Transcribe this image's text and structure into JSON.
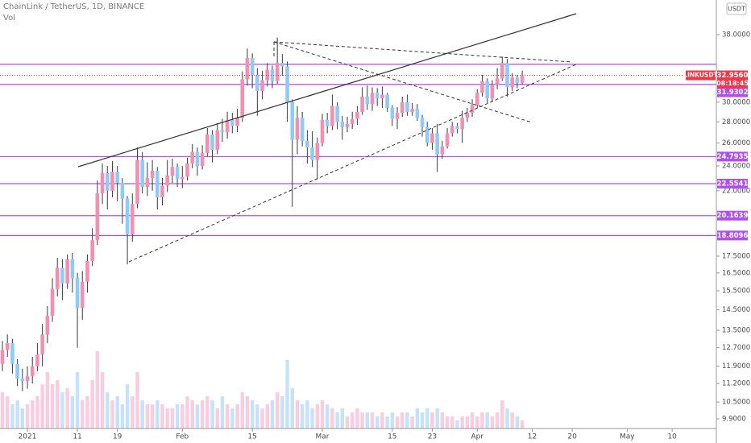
{
  "chart_data": {
    "type": "candlestick",
    "title": "ChainLink / TetherUS, 1D, BINANCE",
    "volume_label": "Vol",
    "currency": "USDT",
    "x": [
      "2020-12-27",
      "2020-12-28",
      "2020-12-29",
      "2020-12-30",
      "2020-12-31",
      "2021-01-01",
      "2021-01-02",
      "2021-01-03",
      "2021-01-04",
      "2021-01-05",
      "2021-01-06",
      "2021-01-07",
      "2021-01-08",
      "2021-01-09",
      "2021-01-10",
      "2021-01-11",
      "2021-01-12",
      "2021-01-13",
      "2021-01-14",
      "2021-01-15",
      "2021-01-16",
      "2021-01-17",
      "2021-01-18",
      "2021-01-19",
      "2021-01-20",
      "2021-01-21",
      "2021-01-22",
      "2021-01-23",
      "2021-01-24",
      "2021-01-25",
      "2021-01-26",
      "2021-01-27",
      "2021-01-28",
      "2021-01-29",
      "2021-01-30",
      "2021-01-31",
      "2021-02-01",
      "2021-02-02",
      "2021-02-03",
      "2021-02-04",
      "2021-02-05",
      "2021-02-06",
      "2021-02-07",
      "2021-02-08",
      "2021-02-09",
      "2021-02-10",
      "2021-02-11",
      "2021-02-12",
      "2021-02-13",
      "2021-02-14",
      "2021-02-15",
      "2021-02-16",
      "2021-02-17",
      "2021-02-18",
      "2021-02-19",
      "2021-02-20",
      "2021-02-21",
      "2021-02-22",
      "2021-02-23",
      "2021-02-24",
      "2021-02-25",
      "2021-02-26",
      "2021-02-27",
      "2021-02-28",
      "2021-03-01",
      "2021-03-02",
      "2021-03-03",
      "2021-03-04",
      "2021-03-05",
      "2021-03-06",
      "2021-03-07",
      "2021-03-08",
      "2021-03-09",
      "2021-03-10",
      "2021-03-11",
      "2021-03-12",
      "2021-03-13",
      "2021-03-14",
      "2021-03-15",
      "2021-03-16",
      "2021-03-17",
      "2021-03-18",
      "2021-03-19",
      "2021-03-20",
      "2021-03-21",
      "2021-03-22",
      "2021-03-23",
      "2021-03-24",
      "2021-03-25",
      "2021-03-26",
      "2021-03-27",
      "2021-03-28",
      "2021-03-29",
      "2021-03-30",
      "2021-03-31",
      "2021-04-01",
      "2021-04-02",
      "2021-04-03",
      "2021-04-04",
      "2021-04-05",
      "2021-04-06",
      "2021-04-07",
      "2021-04-08",
      "2021-04-09",
      "2021-04-10"
    ],
    "open": [
      12.0,
      12.6,
      12.9,
      12.0,
      11.4,
      11.3,
      11.5,
      11.9,
      12.4,
      13.3,
      14.2,
      15.6,
      16.8,
      15.9,
      17.3,
      16.2,
      14.6,
      16.0,
      17.2,
      18.5,
      21.8,
      23.4,
      22.0,
      23.5,
      22.6,
      21.4,
      18.9,
      21.0,
      24.5,
      22.3,
      23.0,
      23.6,
      21.5,
      22.4,
      23.2,
      23.9,
      22.9,
      23.1,
      24.2,
      25.2,
      24.0,
      25.1,
      26.8,
      25.4,
      27.2,
      27.0,
      28.2,
      27.6,
      28.4,
      32.5,
      35.0,
      33.0,
      31.2,
      32.4,
      33.6,
      32.3,
      34.4,
      34.0,
      30.0,
      26.3,
      28.4,
      26.2,
      25.6,
      24.5,
      26.0,
      28.2,
      27.6,
      29.6,
      28.0,
      27.5,
      27.8,
      28.3,
      29.0,
      30.6,
      29.8,
      31.0,
      30.4,
      30.8,
      29.4,
      28.3,
      28.9,
      30.0,
      29.0,
      29.3,
      28.4,
      27.5,
      26.0,
      26.9,
      25.0,
      25.7,
      26.9,
      27.6,
      27.3,
      28.4,
      28.9,
      29.7,
      31.0,
      32.3,
      30.4,
      31.9,
      32.6,
      34.4,
      31.6,
      32.7,
      32.1
    ],
    "high": [
      13.0,
      13.3,
      13.1,
      12.2,
      11.8,
      11.9,
      12.3,
      12.9,
      13.8,
      14.7,
      16.2,
      17.4,
      17.3,
      17.6,
      17.7,
      16.5,
      16.6,
      17.6,
      19.3,
      22.8,
      24.2,
      24.0,
      24.4,
      24.0,
      23.0,
      21.6,
      21.8,
      25.6,
      25.2,
      24.3,
      24.5,
      23.9,
      23.0,
      24.5,
      24.6,
      24.2,
      24.0,
      24.7,
      25.9,
      25.6,
      25.8,
      27.4,
      27.2,
      27.9,
      28.3,
      29.0,
      28.9,
      29.3,
      33.4,
      36.2,
      35.6,
      33.8,
      33.5,
      34.4,
      34.1,
      37.6,
      35.5,
      34.6,
      30.3,
      29.6,
      29.0,
      27.2,
      27.1,
      26.5,
      28.8,
      28.9,
      30.8,
      30.0,
      28.6,
      28.5,
      29.0,
      29.6,
      31.6,
      31.8,
      31.6,
      31.5,
      31.7,
      31.0,
      29.7,
      29.5,
      30.6,
      30.8,
      29.9,
      29.8,
      28.7,
      28.0,
      27.4,
      27.8,
      26.2,
      27.4,
      28.0,
      27.9,
      29.1,
      29.4,
      30.3,
      31.4,
      33.0,
      32.6,
      32.4,
      33.8,
      35.2,
      34.9,
      33.2,
      33.0,
      33.5
    ],
    "low": [
      11.7,
      12.3,
      11.6,
      11.1,
      10.9,
      11.0,
      11.2,
      11.7,
      11.9,
      12.9,
      13.9,
      15.2,
      15.0,
      15.6,
      15.4,
      12.7,
      14.0,
      15.4,
      16.9,
      18.2,
      21.0,
      20.6,
      21.5,
      21.2,
      19.6,
      17.0,
      18.4,
      20.7,
      21.8,
      21.6,
      22.0,
      20.6,
      20.9,
      21.9,
      22.6,
      22.3,
      22.2,
      22.8,
      23.8,
      23.2,
      23.7,
      24.8,
      24.3,
      25.0,
      26.1,
      26.4,
      26.9,
      27.0,
      28.0,
      31.8,
      31.5,
      28.6,
      30.3,
      31.7,
      31.5,
      32.0,
      32.9,
      28.0,
      20.8,
      25.0,
      25.7,
      24.2,
      23.9,
      22.9,
      25.7,
      26.9,
      27.2,
      27.3,
      26.3,
      27.0,
      27.3,
      27.7,
      28.7,
      29.2,
      29.1,
      29.6,
      29.4,
      29.0,
      27.6,
      27.3,
      28.5,
      28.6,
      28.6,
      28.1,
      26.6,
      25.7,
      25.4,
      23.5,
      24.6,
      25.5,
      26.6,
      26.9,
      26.0,
      28.0,
      28.5,
      29.4,
      30.6,
      29.9,
      30.1,
      31.4,
      32.3,
      30.6,
      31.2,
      31.5,
      31.9
    ],
    "close": [
      12.6,
      12.9,
      12.0,
      11.4,
      11.3,
      11.5,
      11.9,
      12.4,
      13.3,
      14.2,
      15.6,
      16.8,
      15.9,
      17.3,
      16.2,
      14.6,
      16.0,
      17.2,
      18.5,
      21.8,
      23.4,
      22.0,
      23.5,
      22.6,
      21.4,
      18.9,
      21.0,
      24.5,
      22.3,
      23.0,
      23.6,
      21.5,
      22.4,
      23.2,
      23.9,
      22.9,
      23.1,
      24.2,
      25.2,
      24.0,
      25.1,
      26.8,
      25.4,
      27.2,
      27.0,
      28.2,
      27.6,
      28.4,
      32.5,
      35.0,
      33.0,
      31.2,
      32.4,
      33.6,
      32.3,
      34.4,
      34.0,
      30.0,
      26.3,
      28.4,
      26.2,
      25.6,
      24.5,
      26.0,
      28.2,
      27.6,
      29.6,
      28.0,
      27.5,
      27.8,
      28.3,
      29.0,
      30.6,
      29.8,
      31.0,
      30.4,
      30.8,
      29.4,
      28.3,
      28.9,
      30.0,
      29.0,
      29.3,
      28.4,
      27.5,
      26.0,
      26.9,
      25.0,
      25.7,
      26.9,
      27.6,
      27.3,
      28.4,
      28.9,
      29.7,
      31.0,
      32.3,
      30.4,
      31.9,
      32.6,
      34.4,
      31.6,
      32.7,
      32.1,
      32.956
    ],
    "volume": [
      45,
      40,
      30,
      35,
      25,
      30,
      35,
      40,
      55,
      70,
      55,
      60,
      45,
      50,
      40,
      70,
      35,
      40,
      60,
      96,
      70,
      45,
      35,
      40,
      30,
      55,
      40,
      70,
      35,
      30,
      30,
      35,
      30,
      25,
      25,
      30,
      30,
      40,
      35,
      30,
      35,
      40,
      35,
      25,
      40,
      30,
      25,
      30,
      45,
      40,
      35,
      30,
      25,
      30,
      35,
      45,
      40,
      85,
      50,
      35,
      30,
      35,
      25,
      30,
      35,
      30,
      25,
      20,
      25,
      15,
      20,
      25,
      20,
      20,
      20,
      15,
      20,
      15,
      20,
      15,
      20,
      20,
      15,
      25,
      20,
      25,
      20,
      25,
      20,
      15,
      15,
      10,
      15,
      15,
      20,
      15,
      20,
      20,
      15,
      20,
      35,
      25,
      20,
      15,
      10
    ],
    "up_color": "#f48fb1",
    "down_color": "#90caf9",
    "wick_color": "#3a3a3a",
    "volume_up_color": "#f9cddd",
    "volume_down_color": "#c6e2fa",
    "xlim": [
      "2020-12-27",
      "2021-05-19"
    ],
    "xticks": [
      {
        "value": "2021-01-01",
        "label": "2021"
      },
      {
        "value": "2021-01-11",
        "label": "11"
      },
      {
        "value": "2021-01-19",
        "label": "19"
      },
      {
        "value": "2021-02-01",
        "label": "Feb"
      },
      {
        "value": "2021-02-15",
        "label": "15"
      },
      {
        "value": "2021-03-01",
        "label": "Mar"
      },
      {
        "value": "2021-03-15",
        "label": "15"
      },
      {
        "value": "2021-03-23",
        "label": "23"
      },
      {
        "value": "2021-04-01",
        "label": "Apr"
      },
      {
        "value": "2021-04-12",
        "label": "12"
      },
      {
        "value": "2021-04-20",
        "label": "20"
      },
      {
        "value": "2021-05-01",
        "label": "May"
      },
      {
        "value": "2021-05-10",
        "label": "10"
      }
    ],
    "ylim": [
      9.57,
      42.9
    ],
    "log_scale": true,
    "yticks": [
      {
        "value": 38,
        "label": "38.0000"
      },
      {
        "value": 30,
        "label": "30.0000"
      },
      {
        "value": 28,
        "label": "28.0000"
      },
      {
        "value": 26,
        "label": "26.0000"
      },
      {
        "value": 24,
        "label": "24.0000"
      },
      {
        "value": 22,
        "label": "22.0000"
      },
      {
        "value": 17.5,
        "label": "17.5000"
      },
      {
        "value": 16.5,
        "label": "16.5000"
      },
      {
        "value": 15.5,
        "label": "15.5000"
      },
      {
        "value": 14.5,
        "label": "14.5000"
      },
      {
        "value": 13.5,
        "label": "13.5000"
      },
      {
        "value": 12.7,
        "label": "12.7000"
      },
      {
        "value": 11.9,
        "label": "11.9000"
      },
      {
        "value": 11.2,
        "label": "11.2000"
      },
      {
        "value": 10.5,
        "label": "10.5000"
      },
      {
        "value": 9.9,
        "label": "9.9000"
      }
    ],
    "levels": [
      34.2464,
      31.9302,
      24.7935,
      22.5541,
      20.1639,
      18.8096
    ],
    "level_color": "#b04ff0",
    "last_price": {
      "symbol": "LINKUSDT",
      "value": 32.956,
      "label": "32.9560",
      "countdown": "08:18:45",
      "color": "#f23645"
    }
  }
}
